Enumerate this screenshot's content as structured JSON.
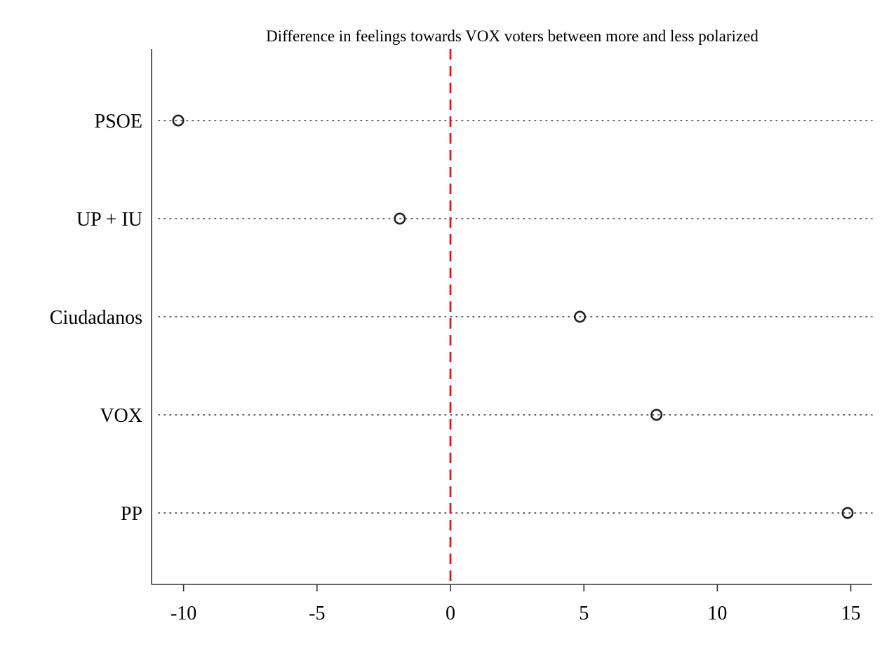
{
  "chart_data": {
    "type": "scatter",
    "title": "Difference in feelings towards VOX voters between more and less polarized",
    "xlabel": "",
    "ylabel": "",
    "categories": [
      "PSOE",
      "UP + IU",
      "Ciudadanos",
      "VOX",
      "PP"
    ],
    "values": [
      -10.2,
      -1.9,
      4.85,
      7.72,
      14.88
    ],
    "xlim": [
      -11.2,
      15.8
    ],
    "xticks": [
      -10,
      -5,
      0,
      5,
      10,
      15
    ],
    "xtick_labels": [
      "-10",
      "-5",
      "0",
      "5",
      "10",
      "15"
    ],
    "reference_line": {
      "x": 0,
      "style": "dashed",
      "color": "#e8141b"
    },
    "marker": "hollow-circle",
    "grid": false,
    "category_guides": "dotted"
  }
}
